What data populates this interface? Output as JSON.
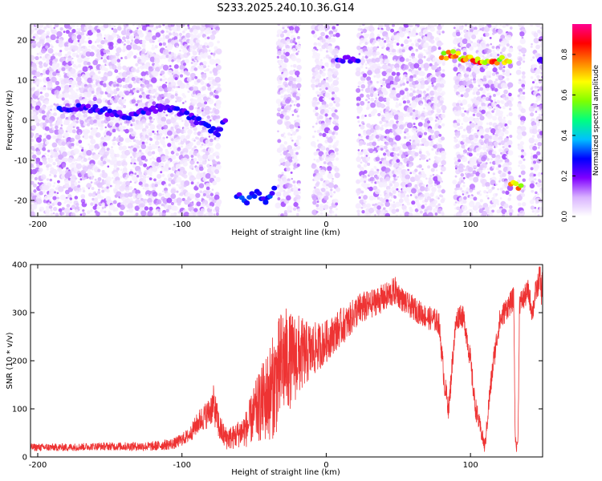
{
  "title": "S233.2025.240.10.36.G14",
  "chart_data": [
    {
      "type": "heatmap",
      "xlabel": "Height of straight line (km)",
      "ylabel": "Frequency (Hz)",
      "xlim": [
        -205,
        150
      ],
      "ylim": [
        -24,
        24
      ],
      "x_ticks": [
        -200,
        -100,
        0,
        100
      ],
      "y_ticks": [
        -20,
        -10,
        0,
        10,
        20
      ],
      "colorbar": {
        "label": "Normalized spectral amplitude",
        "range": [
          0.0,
          0.95
        ],
        "ticks": [
          0.0,
          0.2,
          0.4,
          0.6,
          0.8
        ],
        "colormap": [
          "#ffffff",
          "#d9b3ff",
          "#8000ff",
          "#0000ff",
          "#00c0ff",
          "#00ff80",
          "#80ff00",
          "#ffff00",
          "#ff8000",
          "#ff0000",
          "#ff0090"
        ]
      },
      "gaps_km": [
        [
          -75,
          -35
        ],
        [
          -20,
          -10
        ],
        [
          8,
          22
        ],
        [
          80,
          87
        ],
        [
          128,
          133
        ],
        [
          137,
          141
        ]
      ],
      "features": [
        {
          "name": "dominant tone (descending)",
          "x": [
            -185,
            -160,
            -140,
            -115,
            -100,
            -90,
            -80,
            -75,
            -70
          ],
          "y": [
            3,
            3,
            1,
            3,
            2,
            0,
            -2,
            -3,
            0
          ],
          "amplitude": 0.3
        },
        {
          "name": "low band burst",
          "x": [
            -62,
            -55,
            -48,
            -42,
            -36
          ],
          "y": [
            -19,
            -20,
            -18,
            -21,
            -17
          ],
          "amplitude": 0.35
        },
        {
          "name": "upper tone A",
          "x": [
            8,
            22
          ],
          "y": [
            15,
            15
          ],
          "amplitude": 0.3
        },
        {
          "name": "upper tone B",
          "x": [
            80,
            88,
            95,
            105,
            115,
            127
          ],
          "y": [
            16,
            16.5,
            15.5,
            15,
            15,
            15
          ],
          "amplitude": 0.9
        },
        {
          "name": "low tone",
          "x": [
            128,
            135
          ],
          "y": [
            -16,
            -16.5
          ],
          "amplitude": 0.85
        },
        {
          "name": "edge tone",
          "x": [
            148,
            150
          ],
          "y": [
            15,
            15
          ],
          "amplitude": 0.3
        }
      ]
    },
    {
      "type": "line",
      "xlabel": "Height of straight line (km)",
      "ylabel": "SNR (10 * v/v)",
      "xlim": [
        -205,
        150
      ],
      "ylim": [
        0,
        400
      ],
      "x_ticks": [
        -200,
        -100,
        0,
        100
      ],
      "y_ticks": [
        0,
        100,
        200,
        300,
        400
      ],
      "color": "#ee3333",
      "series": [
        {
          "x": [
            -205,
            -180,
            -160,
            -140,
            -120,
            -105,
            -95,
            -88,
            -82,
            -78,
            -74,
            -70,
            -65,
            -60,
            -55,
            -50,
            -45,
            -40,
            -36,
            -32,
            -30,
            -25,
            -20,
            -15,
            -10,
            -5,
            0,
            5,
            10,
            15,
            20,
            25,
            30,
            35,
            40,
            45,
            48,
            52,
            55,
            60,
            65,
            70,
            75,
            78,
            80,
            82,
            85,
            88,
            90,
            93,
            96,
            100,
            103,
            106,
            110,
            113,
            116,
            120,
            125,
            128,
            130,
            131,
            132,
            133,
            134,
            137,
            140,
            143,
            145,
            147,
            148,
            149,
            150
          ],
          "y": [
            20,
            20,
            22,
            22,
            22,
            28,
            45,
            75,
            90,
            110,
            60,
            40,
            40,
            50,
            60,
            90,
            110,
            130,
            150,
            180,
            200,
            200,
            210,
            215,
            220,
            230,
            240,
            255,
            270,
            280,
            300,
            310,
            315,
            325,
            330,
            340,
            345,
            330,
            320,
            310,
            300,
            290,
            285,
            280,
            220,
            150,
            100,
            220,
            280,
            300,
            280,
            200,
            110,
            70,
            20,
            120,
            200,
            280,
            310,
            320,
            330,
            40,
            20,
            40,
            320,
            330,
            345,
            300,
            340,
            360,
            380,
            340,
            370
          ],
          "noise_amplitude": [
            8,
            8,
            8,
            9,
            10,
            12,
            15,
            25,
            30,
            40,
            30,
            25,
            25,
            30,
            40,
            60,
            80,
            100,
            110,
            120,
            120,
            100,
            90,
            70,
            60,
            50,
            45,
            40,
            40,
            35,
            35,
            35,
            30,
            30,
            30,
            30,
            30,
            25,
            25,
            25,
            25,
            25,
            25,
            25,
            25,
            25,
            25,
            25,
            25,
            25,
            25,
            25,
            25,
            20,
            15,
            25,
            25,
            25,
            25,
            25,
            25,
            10,
            10,
            10,
            25,
            25,
            25,
            25,
            25,
            25,
            30,
            30,
            30
          ]
        }
      ]
    }
  ]
}
